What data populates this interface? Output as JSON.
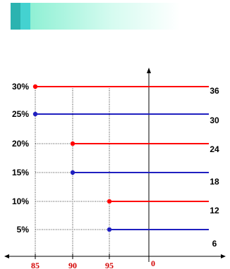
{
  "banner": {
    "colors": [
      "#2cb3b0",
      "#44d2d0",
      "#8ff0d4"
    ]
  },
  "chart_data": {
    "type": "line",
    "x_ticks": [
      "85",
      "90",
      "95",
      "0"
    ],
    "y_ticks": [
      "5%",
      "10%",
      "15%",
      "20%",
      "25%",
      "30%"
    ],
    "right_labels": [
      "6",
      "12",
      "18",
      "24",
      "30",
      "36"
    ],
    "series": [
      {
        "color": "#ff0000",
        "segments": [
          {
            "from": "85",
            "y": "30%",
            "right_label": "36"
          },
          {
            "from": "90",
            "y": "20%",
            "right_label": "24"
          },
          {
            "from": "95",
            "y": "10%",
            "right_label": "12"
          }
        ]
      },
      {
        "color": "#2020c0",
        "segments": [
          {
            "from": "85",
            "y": "25%",
            "right_label": "30"
          },
          {
            "from": "90",
            "y": "15%",
            "right_label": "18"
          },
          {
            "from": "95",
            "y": "5%",
            "right_label": "6"
          }
        ]
      }
    ],
    "grid": "dotted guide lines from y-axis labels to each segment start",
    "colors": {
      "red": "#ff0000",
      "blue": "#2020c0",
      "axis": "#000000",
      "tick_x": "#d40000"
    }
  }
}
